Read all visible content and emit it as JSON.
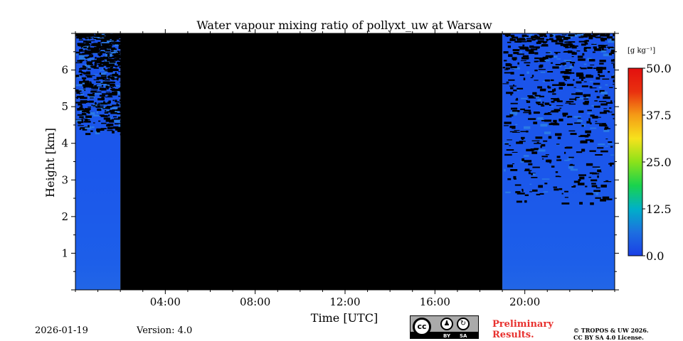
{
  "chart_data": {
    "type": "heatmap",
    "title": "Water vapour mixing ratio of pollyxt_uw at Warsaw",
    "xlabel": "Time [UTC]",
    "ylabel": "Height [km]",
    "x_range_hours": [
      0,
      24
    ],
    "y_range_km": [
      0,
      7
    ],
    "x_ticks": [
      {
        "value": 4,
        "label": "04:00"
      },
      {
        "value": 8,
        "label": "08:00"
      },
      {
        "value": 12,
        "label": "12:00"
      },
      {
        "value": 16,
        "label": "16:00"
      },
      {
        "value": 20,
        "label": "20:00"
      }
    ],
    "y_ticks": [
      {
        "value": 1,
        "label": "1"
      },
      {
        "value": 2,
        "label": "2"
      },
      {
        "value": 3,
        "label": "3"
      },
      {
        "value": 4,
        "label": "4"
      },
      {
        "value": 5,
        "label": "5"
      },
      {
        "value": 6,
        "label": "6"
      }
    ],
    "no_data_interval_hours": [
      2.0,
      19.0
    ],
    "colorbar": {
      "unit": "[g kg⁻¹]",
      "range": [
        0.0,
        50.0
      ],
      "ticks": [
        "0.0",
        "12.5",
        "25.0",
        "37.5",
        "50.0"
      ],
      "tick_values": [
        0.0,
        12.5,
        25.0,
        37.5,
        50.0
      ],
      "colors": [
        "#1a3fe6",
        "#1d6fe0",
        "#00b0c8",
        "#19d34d",
        "#8be21a",
        "#f6e21c",
        "#f59b16",
        "#e9300f",
        "#e30f0f"
      ]
    }
  },
  "footer": {
    "date": "2026-01-19",
    "version": "Version: 4.0",
    "preliminary_line1": "Preliminary",
    "preliminary_line2": "Results.",
    "copyright_line1": "© TROPOS & UW 2026.",
    "copyright_line2": "CC BY SA 4.0 License.",
    "license_badge": {
      "cc": "cc",
      "by": "BY",
      "sa": "SA"
    }
  }
}
